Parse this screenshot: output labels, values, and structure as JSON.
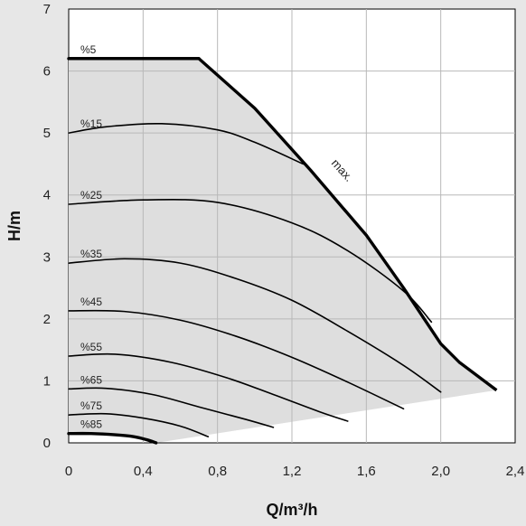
{
  "chart_data": {
    "type": "line",
    "title": "",
    "xlabel": "Q/m³/h",
    "ylabel": "H/m",
    "xlim": [
      0,
      2.4
    ],
    "ylim": [
      0,
      7
    ],
    "x_ticks": [
      "0",
      "0,4",
      "0,8",
      "1,2",
      "1,6",
      "2,0",
      "2,4"
    ],
    "y_ticks": [
      "0",
      "1",
      "2",
      "3",
      "4",
      "5",
      "6",
      "7"
    ],
    "grid": true,
    "colors": {
      "background": "#e7e7e7",
      "plot": "#ffffff",
      "region": "#dedede",
      "grid": "#b8b8b8",
      "line": "#000000"
    },
    "max_curve": {
      "label": "max.",
      "x": [
        0,
        0.7,
        1.0,
        1.3,
        1.6,
        1.8,
        2.0,
        2.1,
        2.3
      ],
      "y": [
        6.2,
        6.2,
        5.4,
        4.4,
        3.35,
        2.5,
        1.6,
        1.3,
        0.85
      ]
    },
    "bottom_curve": {
      "x": [
        0,
        0.12,
        0.25,
        0.35,
        0.42,
        0.47
      ],
      "y": [
        0.15,
        0.15,
        0.13,
        0.1,
        0.05,
        0.0
      ]
    },
    "series": [
      {
        "name": "%5",
        "x": [
          0,
          0.7
        ],
        "y": [
          6.2,
          6.2
        ]
      },
      {
        "name": "%15",
        "x": [
          0,
          0.2,
          0.5,
          0.8,
          1.0,
          1.26
        ],
        "y": [
          5.0,
          5.1,
          5.15,
          5.05,
          4.85,
          4.5
        ]
      },
      {
        "name": "%25",
        "x": [
          0,
          0.4,
          0.8,
          1.2,
          1.5,
          1.8,
          1.95
        ],
        "y": [
          3.85,
          3.92,
          3.88,
          3.55,
          3.1,
          2.45,
          1.95
        ]
      },
      {
        "name": "%35",
        "x": [
          0,
          0.3,
          0.6,
          0.9,
          1.2,
          1.5,
          1.8,
          2.0
        ],
        "y": [
          2.9,
          2.97,
          2.9,
          2.65,
          2.3,
          1.8,
          1.25,
          0.82
        ]
      },
      {
        "name": "%45",
        "x": [
          0,
          0.3,
          0.6,
          0.9,
          1.2,
          1.5,
          1.8
        ],
        "y": [
          2.13,
          2.12,
          1.98,
          1.72,
          1.38,
          0.98,
          0.55
        ]
      },
      {
        "name": "%55",
        "x": [
          0,
          0.25,
          0.55,
          0.85,
          1.1,
          1.35,
          1.5
        ],
        "y": [
          1.4,
          1.43,
          1.3,
          1.05,
          0.78,
          0.5,
          0.35
        ]
      },
      {
        "name": "%65",
        "x": [
          0,
          0.2,
          0.45,
          0.7,
          0.95,
          1.1
        ],
        "y": [
          0.87,
          0.88,
          0.78,
          0.58,
          0.38,
          0.25
        ]
      },
      {
        "name": "%75",
        "x": [
          0,
          0.2,
          0.4,
          0.6,
          0.75
        ],
        "y": [
          0.45,
          0.47,
          0.4,
          0.27,
          0.1
        ]
      },
      {
        "name": "%85",
        "x": [
          0,
          0.12,
          0.25,
          0.35,
          0.42,
          0.47
        ],
        "y": [
          0.15,
          0.15,
          0.13,
          0.1,
          0.05,
          0.0
        ]
      }
    ]
  }
}
